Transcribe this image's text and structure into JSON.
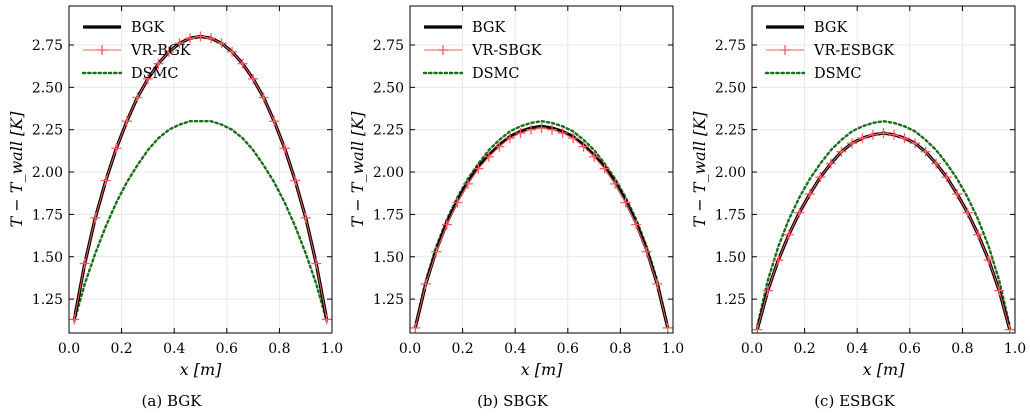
{
  "chart_data": [
    {
      "type": "line",
      "caption": "(a) BGK",
      "xlabel": "x [m]",
      "ylabel": "T − T_wall [K]",
      "xlim": [
        0.0,
        1.0
      ],
      "ylim": [
        1.05,
        2.98
      ],
      "xticks": [
        "0.0",
        "0.2",
        "0.4",
        "0.6",
        "0.8",
        "1.0"
      ],
      "yticks": [
        "1.25",
        "1.50",
        "1.75",
        "2.00",
        "2.25",
        "2.50",
        "2.75"
      ],
      "grid": true,
      "legend_position": "top-left",
      "series": [
        {
          "name": "BGK",
          "color": "#000000",
          "style": "solid-thick",
          "x": [
            0.02,
            0.06,
            0.1,
            0.14,
            0.18,
            0.22,
            0.26,
            0.3,
            0.34,
            0.38,
            0.42,
            0.46,
            0.5,
            0.54,
            0.58,
            0.62,
            0.66,
            0.7,
            0.74,
            0.78,
            0.82,
            0.86,
            0.9,
            0.94,
            0.98
          ],
          "y": [
            1.13,
            1.46,
            1.73,
            1.95,
            2.14,
            2.3,
            2.44,
            2.55,
            2.64,
            2.71,
            2.76,
            2.79,
            2.8,
            2.79,
            2.76,
            2.71,
            2.64,
            2.55,
            2.44,
            2.3,
            2.14,
            1.95,
            1.73,
            1.46,
            1.13
          ]
        },
        {
          "name": "VR-BGK",
          "color": "#ff5a5f",
          "style": "thin-plus-marker",
          "x": [
            0.02,
            0.06,
            0.1,
            0.14,
            0.18,
            0.22,
            0.26,
            0.3,
            0.34,
            0.38,
            0.42,
            0.46,
            0.5,
            0.54,
            0.58,
            0.62,
            0.66,
            0.7,
            0.74,
            0.78,
            0.82,
            0.86,
            0.9,
            0.94,
            0.98
          ],
          "y": [
            1.13,
            1.46,
            1.73,
            1.95,
            2.14,
            2.3,
            2.44,
            2.55,
            2.64,
            2.71,
            2.76,
            2.79,
            2.8,
            2.79,
            2.76,
            2.71,
            2.64,
            2.55,
            2.44,
            2.3,
            2.14,
            1.95,
            1.73,
            1.46,
            1.13
          ]
        },
        {
          "name": "DSMC",
          "color": "#1a6e1a",
          "style": "dotted",
          "x": [
            0.02,
            0.06,
            0.1,
            0.14,
            0.18,
            0.22,
            0.26,
            0.3,
            0.34,
            0.38,
            0.42,
            0.46,
            0.5,
            0.54,
            0.58,
            0.62,
            0.66,
            0.7,
            0.74,
            0.78,
            0.82,
            0.86,
            0.9,
            0.94,
            0.98
          ],
          "y": [
            1.12,
            1.34,
            1.52,
            1.68,
            1.82,
            1.94,
            2.04,
            2.13,
            2.2,
            2.25,
            2.28,
            2.3,
            2.3,
            2.3,
            2.28,
            2.25,
            2.2,
            2.13,
            2.04,
            1.94,
            1.82,
            1.68,
            1.52,
            1.34,
            1.12
          ]
        }
      ]
    },
    {
      "type": "line",
      "caption": "(b) SBGK",
      "xlabel": "x [m]",
      "ylabel": "T − T_wall [K]",
      "xlim": [
        0.0,
        1.0
      ],
      "ylim": [
        1.05,
        2.98
      ],
      "xticks": [
        "0.0",
        "0.2",
        "0.4",
        "0.6",
        "0.8",
        "1.0"
      ],
      "yticks": [
        "1.25",
        "1.50",
        "1.75",
        "2.00",
        "2.25",
        "2.50",
        "2.75"
      ],
      "grid": true,
      "legend_position": "top-left",
      "series": [
        {
          "name": "BGK",
          "color": "#000000",
          "style": "solid-thick",
          "x": [
            0.02,
            0.06,
            0.1,
            0.14,
            0.18,
            0.22,
            0.26,
            0.3,
            0.34,
            0.38,
            0.42,
            0.46,
            0.5,
            0.54,
            0.58,
            0.62,
            0.66,
            0.7,
            0.74,
            0.78,
            0.82,
            0.86,
            0.9,
            0.94,
            0.98
          ],
          "y": [
            1.08,
            1.34,
            1.54,
            1.7,
            1.83,
            1.94,
            2.03,
            2.1,
            2.16,
            2.21,
            2.24,
            2.26,
            2.27,
            2.26,
            2.24,
            2.21,
            2.16,
            2.1,
            2.03,
            1.94,
            1.83,
            1.7,
            1.54,
            1.34,
            1.08
          ]
        },
        {
          "name": "VR-SBGK",
          "color": "#ff5a5f",
          "style": "thin-plus-marker",
          "x": [
            0.02,
            0.06,
            0.1,
            0.14,
            0.18,
            0.22,
            0.26,
            0.3,
            0.34,
            0.38,
            0.42,
            0.46,
            0.5,
            0.54,
            0.58,
            0.62,
            0.66,
            0.7,
            0.74,
            0.78,
            0.82,
            0.86,
            0.9,
            0.94,
            0.98
          ],
          "y": [
            1.08,
            1.34,
            1.53,
            1.69,
            1.82,
            1.93,
            2.02,
            2.09,
            2.15,
            2.2,
            2.23,
            2.25,
            2.26,
            2.25,
            2.23,
            2.2,
            2.15,
            2.09,
            2.02,
            1.93,
            1.82,
            1.69,
            1.53,
            1.34,
            1.08
          ]
        },
        {
          "name": "DSMC",
          "color": "#1a6e1a",
          "style": "dotted",
          "x": [
            0.02,
            0.06,
            0.1,
            0.14,
            0.18,
            0.22,
            0.26,
            0.3,
            0.34,
            0.38,
            0.42,
            0.46,
            0.5,
            0.54,
            0.58,
            0.62,
            0.66,
            0.7,
            0.74,
            0.78,
            0.82,
            0.86,
            0.9,
            0.94,
            0.98
          ],
          "y": [
            1.09,
            1.36,
            1.56,
            1.72,
            1.85,
            1.96,
            2.05,
            2.13,
            2.19,
            2.24,
            2.27,
            2.29,
            2.3,
            2.29,
            2.27,
            2.24,
            2.19,
            2.13,
            2.05,
            1.96,
            1.85,
            1.72,
            1.56,
            1.36,
            1.09
          ]
        }
      ]
    },
    {
      "type": "line",
      "caption": "(c) ESBGK",
      "xlabel": "x [m]",
      "ylabel": "T − T_wall [K]",
      "xlim": [
        0.0,
        1.0
      ],
      "ylim": [
        1.05,
        2.98
      ],
      "xticks": [
        "0.0",
        "0.2",
        "0.4",
        "0.6",
        "0.8",
        "1.0"
      ],
      "yticks": [
        "1.25",
        "1.50",
        "1.75",
        "2.00",
        "2.25",
        "2.50",
        "2.75"
      ],
      "grid": true,
      "legend_position": "top-left",
      "series": [
        {
          "name": "BGK",
          "color": "#000000",
          "style": "solid-thick",
          "x": [
            0.02,
            0.06,
            0.1,
            0.14,
            0.18,
            0.22,
            0.26,
            0.3,
            0.34,
            0.38,
            0.42,
            0.46,
            0.5,
            0.54,
            0.58,
            0.62,
            0.66,
            0.7,
            0.74,
            0.78,
            0.82,
            0.86,
            0.9,
            0.94,
            0.98
          ],
          "y": [
            1.07,
            1.3,
            1.48,
            1.63,
            1.76,
            1.87,
            1.97,
            2.05,
            2.12,
            2.17,
            2.2,
            2.22,
            2.23,
            2.22,
            2.2,
            2.17,
            2.12,
            2.05,
            1.97,
            1.87,
            1.76,
            1.63,
            1.48,
            1.3,
            1.07
          ]
        },
        {
          "name": "VR-ESBGK",
          "color": "#ff5a5f",
          "style": "thin-plus-marker",
          "x": [
            0.02,
            0.06,
            0.1,
            0.14,
            0.18,
            0.22,
            0.26,
            0.3,
            0.34,
            0.38,
            0.42,
            0.46,
            0.5,
            0.54,
            0.58,
            0.62,
            0.66,
            0.7,
            0.74,
            0.78,
            0.82,
            0.86,
            0.9,
            0.94,
            0.98
          ],
          "y": [
            1.07,
            1.3,
            1.48,
            1.63,
            1.76,
            1.87,
            1.97,
            2.05,
            2.12,
            2.17,
            2.2,
            2.22,
            2.23,
            2.22,
            2.2,
            2.17,
            2.12,
            2.05,
            1.97,
            1.87,
            1.76,
            1.63,
            1.48,
            1.3,
            1.07
          ]
        },
        {
          "name": "DSMC",
          "color": "#1a6e1a",
          "style": "dotted",
          "x": [
            0.02,
            0.06,
            0.1,
            0.14,
            0.18,
            0.22,
            0.26,
            0.3,
            0.34,
            0.38,
            0.42,
            0.46,
            0.5,
            0.54,
            0.58,
            0.62,
            0.66,
            0.7,
            0.74,
            0.78,
            0.82,
            0.86,
            0.9,
            0.94,
            0.98
          ],
          "y": [
            1.09,
            1.36,
            1.56,
            1.72,
            1.85,
            1.96,
            2.05,
            2.13,
            2.19,
            2.24,
            2.27,
            2.29,
            2.3,
            2.29,
            2.27,
            2.24,
            2.19,
            2.13,
            2.05,
            1.96,
            1.85,
            1.72,
            1.56,
            1.36,
            1.09
          ]
        }
      ]
    }
  ]
}
